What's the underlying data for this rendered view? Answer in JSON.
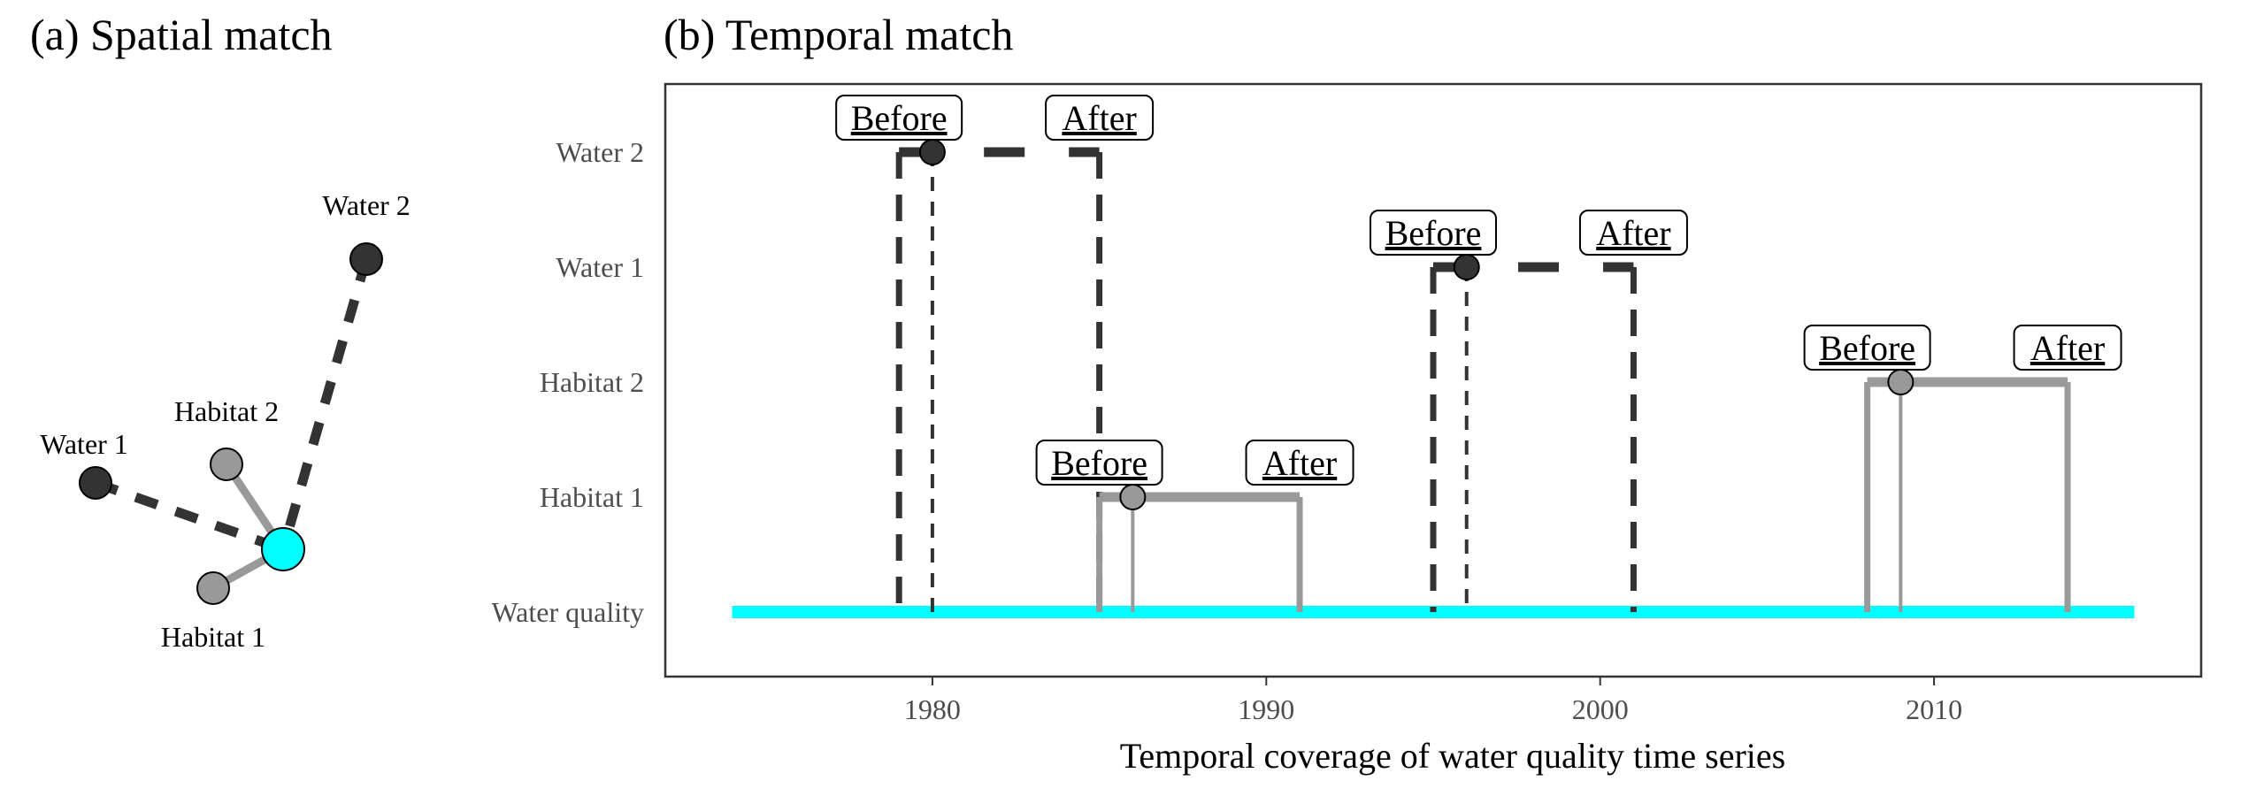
{
  "panel_a": {
    "title": "(a) Spatial match",
    "nodes": [
      {
        "id": "water2",
        "label": "Water 2",
        "type": "water"
      },
      {
        "id": "water1",
        "label": "Water 1",
        "type": "water"
      },
      {
        "id": "habitat2",
        "label": "Habitat 2",
        "type": "habitat"
      },
      {
        "id": "habitat1",
        "label": "Habitat 1",
        "type": "habitat"
      },
      {
        "id": "wq",
        "label": "",
        "type": "water-quality"
      }
    ],
    "links": [
      {
        "from": "water2",
        "to": "wq",
        "style": "dashed"
      },
      {
        "from": "water1",
        "to": "wq",
        "style": "dashed"
      },
      {
        "from": "habitat2",
        "to": "wq",
        "style": "solid"
      },
      {
        "from": "habitat1",
        "to": "wq",
        "style": "solid"
      }
    ]
  },
  "panel_b": {
    "title": "(b) Temporal match",
    "chart_data": {
      "type": "timeline",
      "xlabel": "Temporal coverage of water quality time series",
      "xticks": [
        1980,
        1990,
        2000,
        2010
      ],
      "xlim": [
        1972,
        2018
      ],
      "categories": [
        "Water 2",
        "Water 1",
        "Habitat 2",
        "Habitat 1",
        "Water quality"
      ],
      "water_quality_span": [
        1974,
        2016
      ],
      "events": [
        {
          "category": "Water 2",
          "type": "water",
          "point": 1980,
          "before": 1979,
          "after": 1985
        },
        {
          "category": "Water 1",
          "type": "water",
          "point": 1996,
          "before": 1995,
          "after": 2001
        },
        {
          "category": "Habitat 2",
          "type": "habitat",
          "point": 2009,
          "before": 2008,
          "after": 2014
        },
        {
          "category": "Habitat 1",
          "type": "habitat",
          "point": 1986,
          "before": 1985,
          "after": 1991
        }
      ],
      "before_label": "Before",
      "after_label": "After"
    }
  },
  "colors": {
    "water": "#333333",
    "habitat": "#999999",
    "water_quality": "#00ffff",
    "text": "#000000",
    "axis_text": "#4d4d4d"
  }
}
